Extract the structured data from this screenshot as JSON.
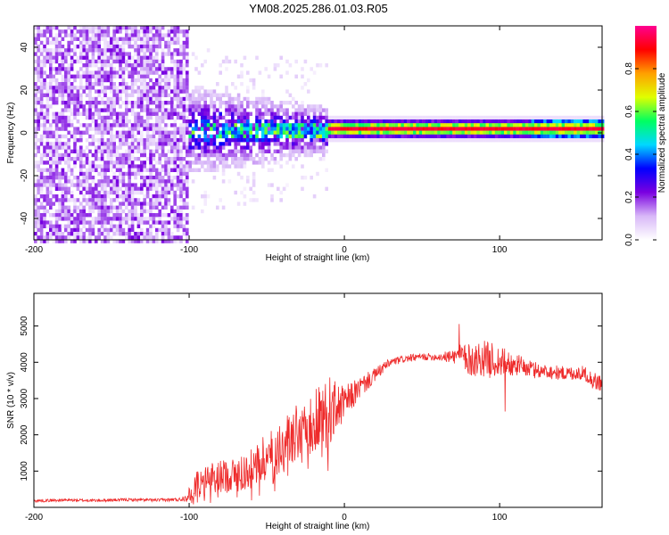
{
  "title": "YM08.2025.286.01.03.R05",
  "chart_data": [
    {
      "type": "heatmap",
      "name": "spectrogram",
      "xlabel": "Height of straight line (km)",
      "ylabel": "Frequency (Hz)",
      "xlim": [
        -200,
        166
      ],
      "ylim": [
        -50,
        50
      ],
      "x_ticks": [
        -200,
        -100,
        0,
        100
      ],
      "y_ticks": [
        -40,
        -20,
        0,
        20,
        40
      ],
      "colorbar": {
        "label": "Normalized spectral amplitude",
        "range": [
          0,
          1
        ],
        "ticks": [
          "0.0",
          "0.2",
          "0.4",
          "0.6",
          "0.8"
        ],
        "tick_values": [
          0,
          0.2,
          0.4,
          0.6,
          0.8
        ],
        "colors": [
          "#ffffff",
          "#d8b8f8",
          "#7a00e0",
          "#0000ff",
          "#00d8ff",
          "#00ff60",
          "#e0ff00",
          "#ffa000",
          "#ff0000",
          "#ff0090"
        ]
      },
      "regions": [
        {
          "x": [
            -200,
            -100
          ],
          "freq_spread": 50,
          "amplitude": 0.15,
          "description": "broadband noise"
        },
        {
          "x": [
            -100,
            -10
          ],
          "freq_spread": 16,
          "amplitude": 0.35,
          "description": "noisy transition"
        },
        {
          "x": [
            -10,
            166
          ],
          "center_freq": 2,
          "band_width": 2,
          "amplitude": 0.95,
          "description": "narrowband signal"
        }
      ]
    },
    {
      "type": "line",
      "name": "snr",
      "xlabel": "Height of straight line (km)",
      "ylabel": "SNR (10 * v/v)",
      "xlim": [
        -200,
        166
      ],
      "ylim": [
        0,
        5900
      ],
      "x_ticks": [
        -200,
        -100,
        0,
        100
      ],
      "y_ticks": [
        1000,
        2000,
        3000,
        4000,
        5000
      ],
      "line_color": "#ee2a2a",
      "series": [
        {
          "name": "SNR",
          "x": [
            -200,
            -180,
            -160,
            -140,
            -120,
            -105,
            -100,
            -95,
            -90,
            -80,
            -70,
            -60,
            -50,
            -40,
            -30,
            -20,
            -15,
            -10,
            -5,
            0,
            10,
            20,
            25,
            30,
            40,
            50,
            60,
            70,
            75,
            80,
            90,
            95,
            100,
            110,
            120,
            130,
            140,
            150,
            155,
            160,
            166
          ],
          "y": [
            180,
            200,
            190,
            210,
            200,
            220,
            350,
            650,
            750,
            850,
            900,
            1050,
            1400,
            1700,
            2000,
            2400,
            2550,
            2650,
            2750,
            2850,
            3300,
            3650,
            3850,
            4000,
            4100,
            4150,
            4150,
            4150,
            4200,
            4050,
            4100,
            4050,
            4000,
            3950,
            3800,
            3750,
            3700,
            3700,
            3700,
            3500,
            3400
          ],
          "jitter": [
            40,
            40,
            40,
            40,
            40,
            50,
            200,
            400,
            400,
            450,
            500,
            550,
            650,
            750,
            850,
            950,
            1000,
            1000,
            700,
            500,
            300,
            200,
            150,
            120,
            100,
            100,
            100,
            200,
            300,
            450,
            500,
            500,
            450,
            300,
            250,
            200,
            200,
            200,
            200,
            250,
            250
          ]
        }
      ]
    }
  ]
}
